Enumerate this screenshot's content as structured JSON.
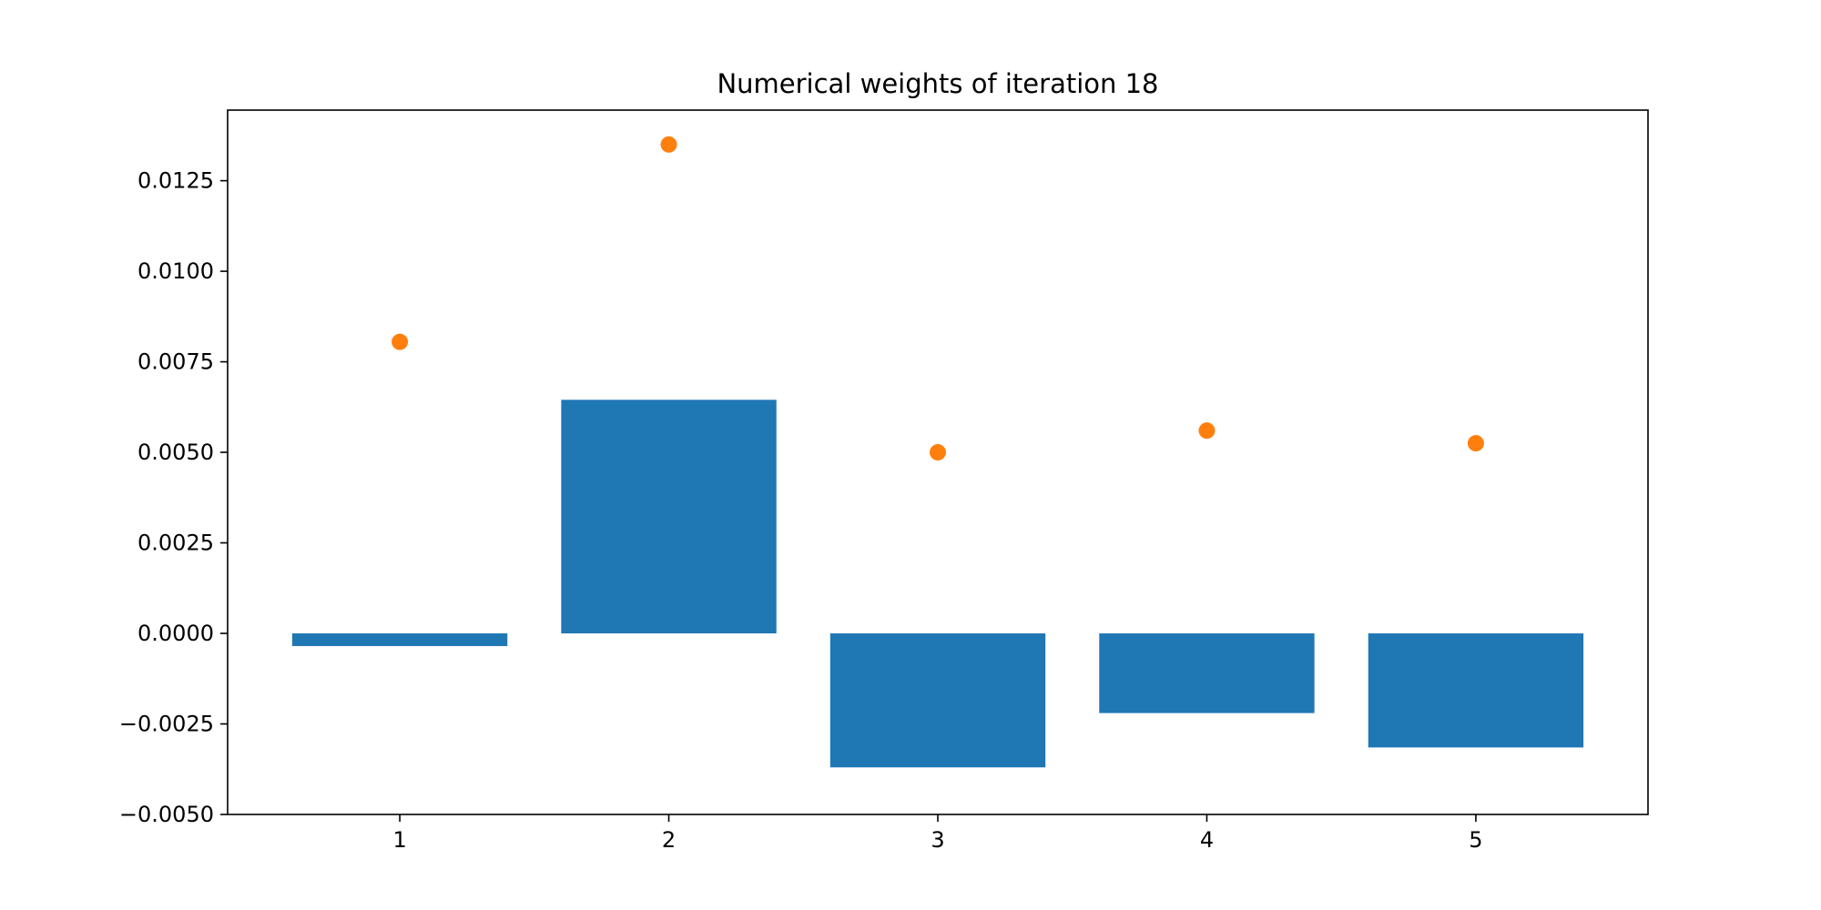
{
  "chart_data": {
    "type": "bar",
    "title": "Numerical weights of iteration 18",
    "xlabel": "",
    "ylabel": "",
    "categories": [
      "1",
      "2",
      "3",
      "4",
      "5"
    ],
    "x": [
      1,
      2,
      3,
      4,
      5
    ],
    "series": [
      {
        "type": "bar",
        "values": [
          -0.00035,
          0.00645,
          -0.0037,
          -0.0022,
          -0.00315
        ],
        "color": "#1f77b4"
      },
      {
        "type": "scatter",
        "values": [
          0.00805,
          0.0135,
          0.005,
          0.0056,
          0.00525
        ],
        "color": "#ff7f0e"
      }
    ],
    "xlim": [
      0.36,
      5.64
    ],
    "ylim": [
      -0.005,
      0.01445
    ],
    "yticks": [
      -0.005,
      -0.0025,
      0.0,
      0.0025,
      0.005,
      0.0075,
      0.01,
      0.0125
    ],
    "ytick_labels": [
      "−0.0050",
      "−0.0025",
      "0.0000",
      "0.0025",
      "0.0050",
      "0.0075",
      "0.0100",
      "0.0125"
    ],
    "grid": false,
    "legend": "none"
  }
}
